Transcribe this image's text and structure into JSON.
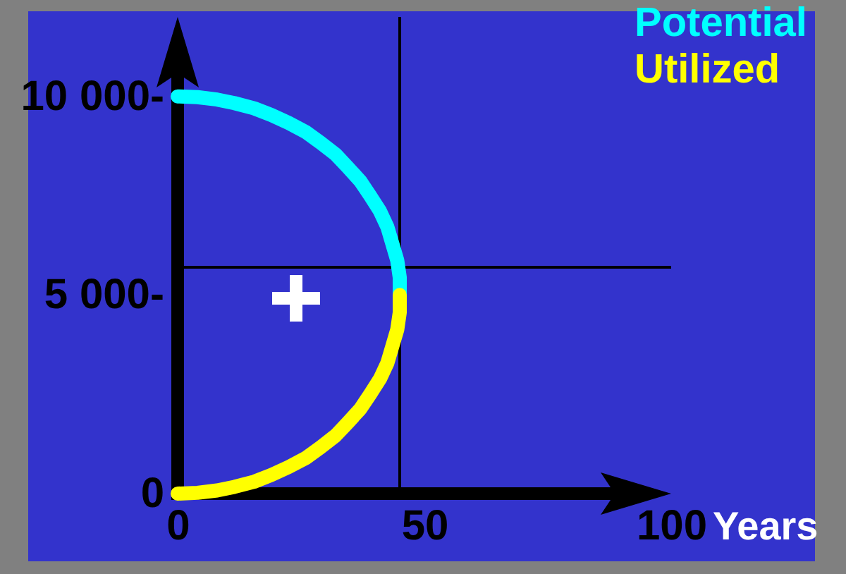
{
  "chart_data": {
    "type": "line",
    "xlabel": "Years",
    "legend": "top right",
    "xlim": [
      0,
      100
    ],
    "xticks": [
      0,
      50,
      100
    ],
    "ylim": [
      0,
      12000
    ],
    "yticks": [
      0,
      {
        "value": 5000,
        "label": "5 000-"
      },
      {
        "value": 10000,
        "label": "10 000-"
      }
    ],
    "series": [
      {
        "name": "Potential",
        "color": "#00ffff",
        "x": [
          0,
          4,
          8,
          11.5,
          15.5,
          19,
          22.5,
          26,
          29,
          32,
          34.5,
          37,
          39,
          41,
          42.5,
          43.5,
          44.5,
          45,
          45
        ],
        "values": [
          10000,
          9980,
          9920,
          9830,
          9700,
          9530,
          9330,
          9100,
          8830,
          8540,
          8210,
          7870,
          7500,
          7110,
          6710,
          6290,
          5870,
          5440,
          5000
        ]
      },
      {
        "name": "Utilized",
        "color": "#ffff00",
        "x": [
          45,
          45,
          44.5,
          43.5,
          42.5,
          41,
          39,
          37,
          34.5,
          32,
          29,
          26,
          22.5,
          19,
          15.5,
          11.5,
          8,
          4,
          0
        ],
        "values": [
          5000,
          4560,
          4130,
          3710,
          3290,
          2890,
          2500,
          2130,
          1790,
          1460,
          1170,
          900,
          670,
          470,
          300,
          170,
          80,
          20,
          0
        ]
      }
    ],
    "ref_lines": [
      {
        "axis": "x",
        "value": 45,
        "color": "#000000"
      },
      {
        "axis": "y",
        "value": 5700,
        "color": "#000000"
      }
    ]
  }
}
